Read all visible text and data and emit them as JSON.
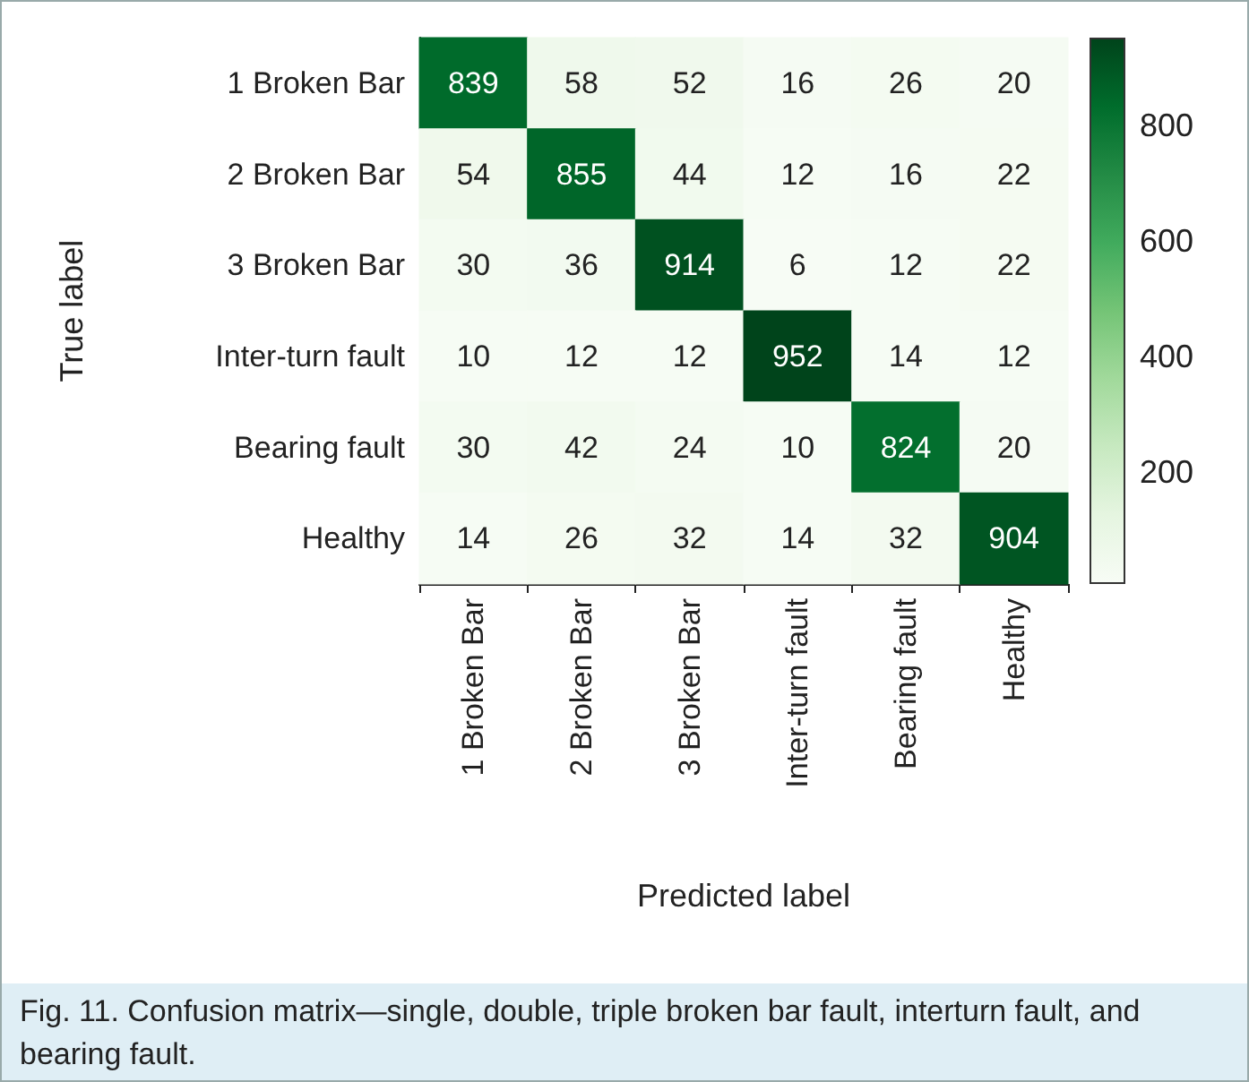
{
  "chart_data": {
    "type": "heatmap",
    "categories": [
      "1 Broken Bar",
      "2 Broken Bar",
      "3 Broken Bar",
      "Inter-turn fault",
      "Bearing fault",
      "Healthy"
    ],
    "y_categories": [
      "1 Broken Bar",
      "2 Broken Bar",
      "3 Broken Bar",
      "Inter-turn fault",
      "Bearing fault",
      "Healthy"
    ],
    "cells": [
      [
        839,
        58,
        52,
        16,
        26,
        20
      ],
      [
        54,
        855,
        44,
        12,
        16,
        22
      ],
      [
        30,
        36,
        914,
        6,
        12,
        22
      ],
      [
        10,
        12,
        12,
        952,
        14,
        12
      ],
      [
        30,
        42,
        24,
        10,
        824,
        20
      ],
      [
        14,
        26,
        32,
        14,
        32,
        904
      ]
    ],
    "data_labels": true,
    "xlabel": "Predicted label",
    "ylabel": "True label",
    "clim": [
      6,
      952
    ],
    "cticks": [
      200,
      400,
      600,
      800
    ],
    "annotations": [
      "Fig. 11. Confusion matrix—single, double, triple broken bar fault, interturn fault, and bearing fault."
    ]
  }
}
